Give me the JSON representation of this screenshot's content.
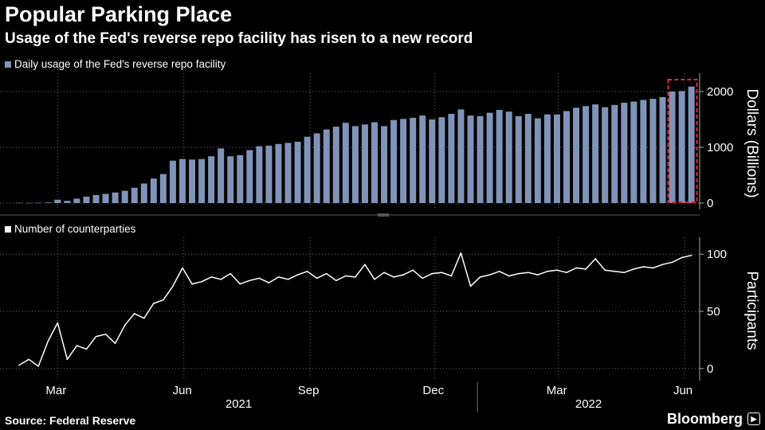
{
  "title": "Popular Parking Place",
  "subtitle": "Usage of the Fed's reverse repo facility has risen to a new record",
  "source": "Source: Federal Reserve",
  "brand": "Bloomberg",
  "colors": {
    "background": "#000000",
    "bars": "#8094b8",
    "line": "#ffffff",
    "highlight": "#e0283c",
    "grid": "#6d6d6d"
  },
  "chart_data": [
    {
      "type": "bar",
      "legend": "Daily usage of the Fed's reverse repo facility",
      "ylabel": "Dollars (Billions)",
      "ylim": [
        0,
        2300
      ],
      "yticks": [
        0,
        1000,
        2000
      ],
      "grid": true,
      "highlight": "dashed box around the most recent bars (late May to early June 2022)",
      "dates": [
        "2021-02-01",
        "2021-02-08",
        "2021-02-15",
        "2021-02-22",
        "2021-03-01",
        "2021-03-08",
        "2021-03-15",
        "2021-03-22",
        "2021-03-29",
        "2021-04-05",
        "2021-04-12",
        "2021-04-19",
        "2021-04-26",
        "2021-05-03",
        "2021-05-10",
        "2021-05-17",
        "2021-05-24",
        "2021-05-31",
        "2021-06-07",
        "2021-06-14",
        "2021-06-21",
        "2021-06-28",
        "2021-07-05",
        "2021-07-12",
        "2021-07-19",
        "2021-07-26",
        "2021-08-02",
        "2021-08-09",
        "2021-08-16",
        "2021-08-23",
        "2021-08-30",
        "2021-09-06",
        "2021-09-13",
        "2021-09-20",
        "2021-09-27",
        "2021-10-04",
        "2021-10-11",
        "2021-10-18",
        "2021-10-25",
        "2021-11-01",
        "2021-11-08",
        "2021-11-15",
        "2021-11-22",
        "2021-11-29",
        "2021-12-06",
        "2021-12-13",
        "2021-12-20",
        "2021-12-27",
        "2022-01-03",
        "2022-01-10",
        "2022-01-17",
        "2022-01-24",
        "2022-01-31",
        "2022-02-07",
        "2022-02-14",
        "2022-02-21",
        "2022-02-28",
        "2022-03-07",
        "2022-03-14",
        "2022-03-21",
        "2022-03-28",
        "2022-04-04",
        "2022-04-11",
        "2022-04-18",
        "2022-04-25",
        "2022-05-02",
        "2022-05-09",
        "2022-05-16",
        "2022-05-23",
        "2022-05-30",
        "2022-06-06"
      ],
      "values": [
        4,
        2,
        5,
        10,
        60,
        40,
        80,
        115,
        145,
        165,
        190,
        220,
        275,
        350,
        440,
        520,
        760,
        790,
        780,
        790,
        840,
        980,
        840,
        860,
        950,
        1020,
        1030,
        1060,
        1080,
        1100,
        1190,
        1250,
        1320,
        1370,
        1440,
        1380,
        1410,
        1450,
        1380,
        1490,
        1510,
        1530,
        1570,
        1500,
        1540,
        1600,
        1680,
        1570,
        1560,
        1620,
        1670,
        1640,
        1560,
        1600,
        1520,
        1590,
        1590,
        1650,
        1710,
        1740,
        1770,
        1720,
        1760,
        1800,
        1820,
        1850,
        1870,
        1900,
        2000,
        2010,
        2090
      ]
    },
    {
      "type": "line",
      "legend": "Number of counterparties",
      "ylabel": "Participants",
      "ylim": [
        -5,
        112
      ],
      "yticks": [
        0,
        50,
        100
      ],
      "grid": true,
      "x_axis": {
        "months": [
          "Mar",
          "Jun",
          "Sep",
          "Dec",
          "Mar",
          "Jun"
        ],
        "years": [
          "2021",
          "2022"
        ]
      },
      "dates": [
        "2021-02-01",
        "2021-02-08",
        "2021-02-15",
        "2021-02-22",
        "2021-03-01",
        "2021-03-08",
        "2021-03-15",
        "2021-03-22",
        "2021-03-29",
        "2021-04-05",
        "2021-04-12",
        "2021-04-19",
        "2021-04-26",
        "2021-05-03",
        "2021-05-10",
        "2021-05-17",
        "2021-05-24",
        "2021-05-31",
        "2021-06-07",
        "2021-06-14",
        "2021-06-21",
        "2021-06-28",
        "2021-07-05",
        "2021-07-12",
        "2021-07-19",
        "2021-07-26",
        "2021-08-02",
        "2021-08-09",
        "2021-08-16",
        "2021-08-23",
        "2021-08-30",
        "2021-09-06",
        "2021-09-13",
        "2021-09-20",
        "2021-09-27",
        "2021-10-04",
        "2021-10-11",
        "2021-10-18",
        "2021-10-25",
        "2021-11-01",
        "2021-11-08",
        "2021-11-15",
        "2021-11-22",
        "2021-11-29",
        "2021-12-06",
        "2021-12-13",
        "2021-12-20",
        "2021-12-27",
        "2022-01-03",
        "2022-01-10",
        "2022-01-17",
        "2022-01-24",
        "2022-01-31",
        "2022-02-07",
        "2022-02-14",
        "2022-02-21",
        "2022-02-28",
        "2022-03-07",
        "2022-03-14",
        "2022-03-21",
        "2022-03-28",
        "2022-04-04",
        "2022-04-11",
        "2022-04-18",
        "2022-04-25",
        "2022-05-02",
        "2022-05-09",
        "2022-05-16",
        "2022-05-23",
        "2022-05-30",
        "2022-06-06"
      ],
      "values": [
        3,
        8,
        2,
        24,
        40,
        8,
        20,
        17,
        28,
        30,
        22,
        38,
        48,
        44,
        57,
        60,
        72,
        88,
        74,
        76,
        80,
        78,
        83,
        74,
        77,
        79,
        75,
        80,
        78,
        82,
        85,
        79,
        83,
        77,
        81,
        80,
        91,
        78,
        84,
        80,
        82,
        86,
        79,
        83,
        84,
        81,
        101,
        72,
        80,
        82,
        85,
        81,
        83,
        84,
        82,
        85,
        86,
        84,
        88,
        87,
        96,
        86,
        85,
        84,
        87,
        89,
        88,
        91,
        93,
        97,
        99
      ]
    }
  ]
}
